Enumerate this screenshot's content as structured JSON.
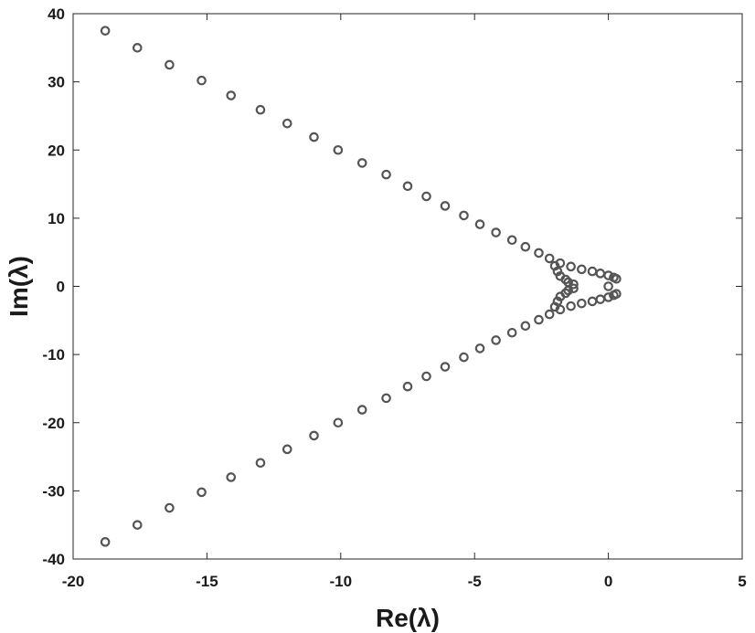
{
  "chart_data": {
    "type": "scatter",
    "title": "",
    "xlabel": "Re(λ)",
    "ylabel": "Im(λ)",
    "xlim": [
      -20,
      5
    ],
    "ylim": [
      -40,
      40
    ],
    "xticks": [
      -20,
      -15,
      -10,
      -5,
      0,
      5
    ],
    "yticks": [
      -40,
      -30,
      -20,
      -10,
      0,
      10,
      20,
      30,
      40
    ],
    "grid": false,
    "legend": "none",
    "marker": "circle",
    "marker_color": "#555555",
    "series": [
      {
        "points": [
          [
            -18.8,
            37.5
          ],
          [
            -17.6,
            35.0
          ],
          [
            -16.4,
            32.5
          ],
          [
            -15.2,
            30.2
          ],
          [
            -14.1,
            28.0
          ],
          [
            -13.0,
            25.9
          ],
          [
            -12.0,
            23.9
          ],
          [
            -11.0,
            21.9
          ],
          [
            -10.1,
            20.0
          ],
          [
            -9.2,
            18.1
          ],
          [
            -8.3,
            16.4
          ],
          [
            -7.5,
            14.7
          ],
          [
            -6.8,
            13.2
          ],
          [
            -6.1,
            11.8
          ],
          [
            -5.4,
            10.4
          ],
          [
            -4.8,
            9.1
          ],
          [
            -4.2,
            7.9
          ],
          [
            -3.6,
            6.8
          ],
          [
            -3.1,
            5.8
          ],
          [
            -2.6,
            4.9
          ],
          [
            -2.2,
            4.1
          ],
          [
            -1.8,
            3.4
          ],
          [
            -1.4,
            2.9
          ],
          [
            -1.0,
            2.5
          ],
          [
            -0.6,
            2.2
          ],
          [
            -0.3,
            1.9
          ],
          [
            0.0,
            1.6
          ],
          [
            0.2,
            1.3
          ],
          [
            0.3,
            1.1
          ],
          [
            -2.0,
            3.0
          ],
          [
            -1.9,
            2.2
          ],
          [
            -1.8,
            1.5
          ],
          [
            -1.6,
            1.0
          ],
          [
            -1.5,
            0.6
          ],
          [
            -1.3,
            0.3
          ],
          [
            -18.8,
            -37.5
          ],
          [
            -17.6,
            -35.0
          ],
          [
            -16.4,
            -32.5
          ],
          [
            -15.2,
            -30.2
          ],
          [
            -14.1,
            -28.0
          ],
          [
            -13.0,
            -25.9
          ],
          [
            -12.0,
            -23.9
          ],
          [
            -11.0,
            -21.9
          ],
          [
            -10.1,
            -20.0
          ],
          [
            -9.2,
            -18.1
          ],
          [
            -8.3,
            -16.4
          ],
          [
            -7.5,
            -14.7
          ],
          [
            -6.8,
            -13.2
          ],
          [
            -6.1,
            -11.8
          ],
          [
            -5.4,
            -10.4
          ],
          [
            -4.8,
            -9.1
          ],
          [
            -4.2,
            -7.9
          ],
          [
            -3.6,
            -6.8
          ],
          [
            -3.1,
            -5.8
          ],
          [
            -2.6,
            -4.9
          ],
          [
            -2.2,
            -4.1
          ],
          [
            -1.8,
            -3.4
          ],
          [
            -1.4,
            -2.9
          ],
          [
            -1.0,
            -2.5
          ],
          [
            -0.6,
            -2.2
          ],
          [
            -0.3,
            -1.9
          ],
          [
            0.0,
            -1.6
          ],
          [
            0.2,
            -1.3
          ],
          [
            0.3,
            -1.1
          ],
          [
            -2.0,
            -3.0
          ],
          [
            -1.9,
            -2.2
          ],
          [
            -1.8,
            -1.5
          ],
          [
            -1.6,
            -1.0
          ],
          [
            -1.5,
            -0.6
          ],
          [
            -1.3,
            -0.3
          ],
          [
            0.0,
            0.0
          ]
        ]
      }
    ]
  }
}
